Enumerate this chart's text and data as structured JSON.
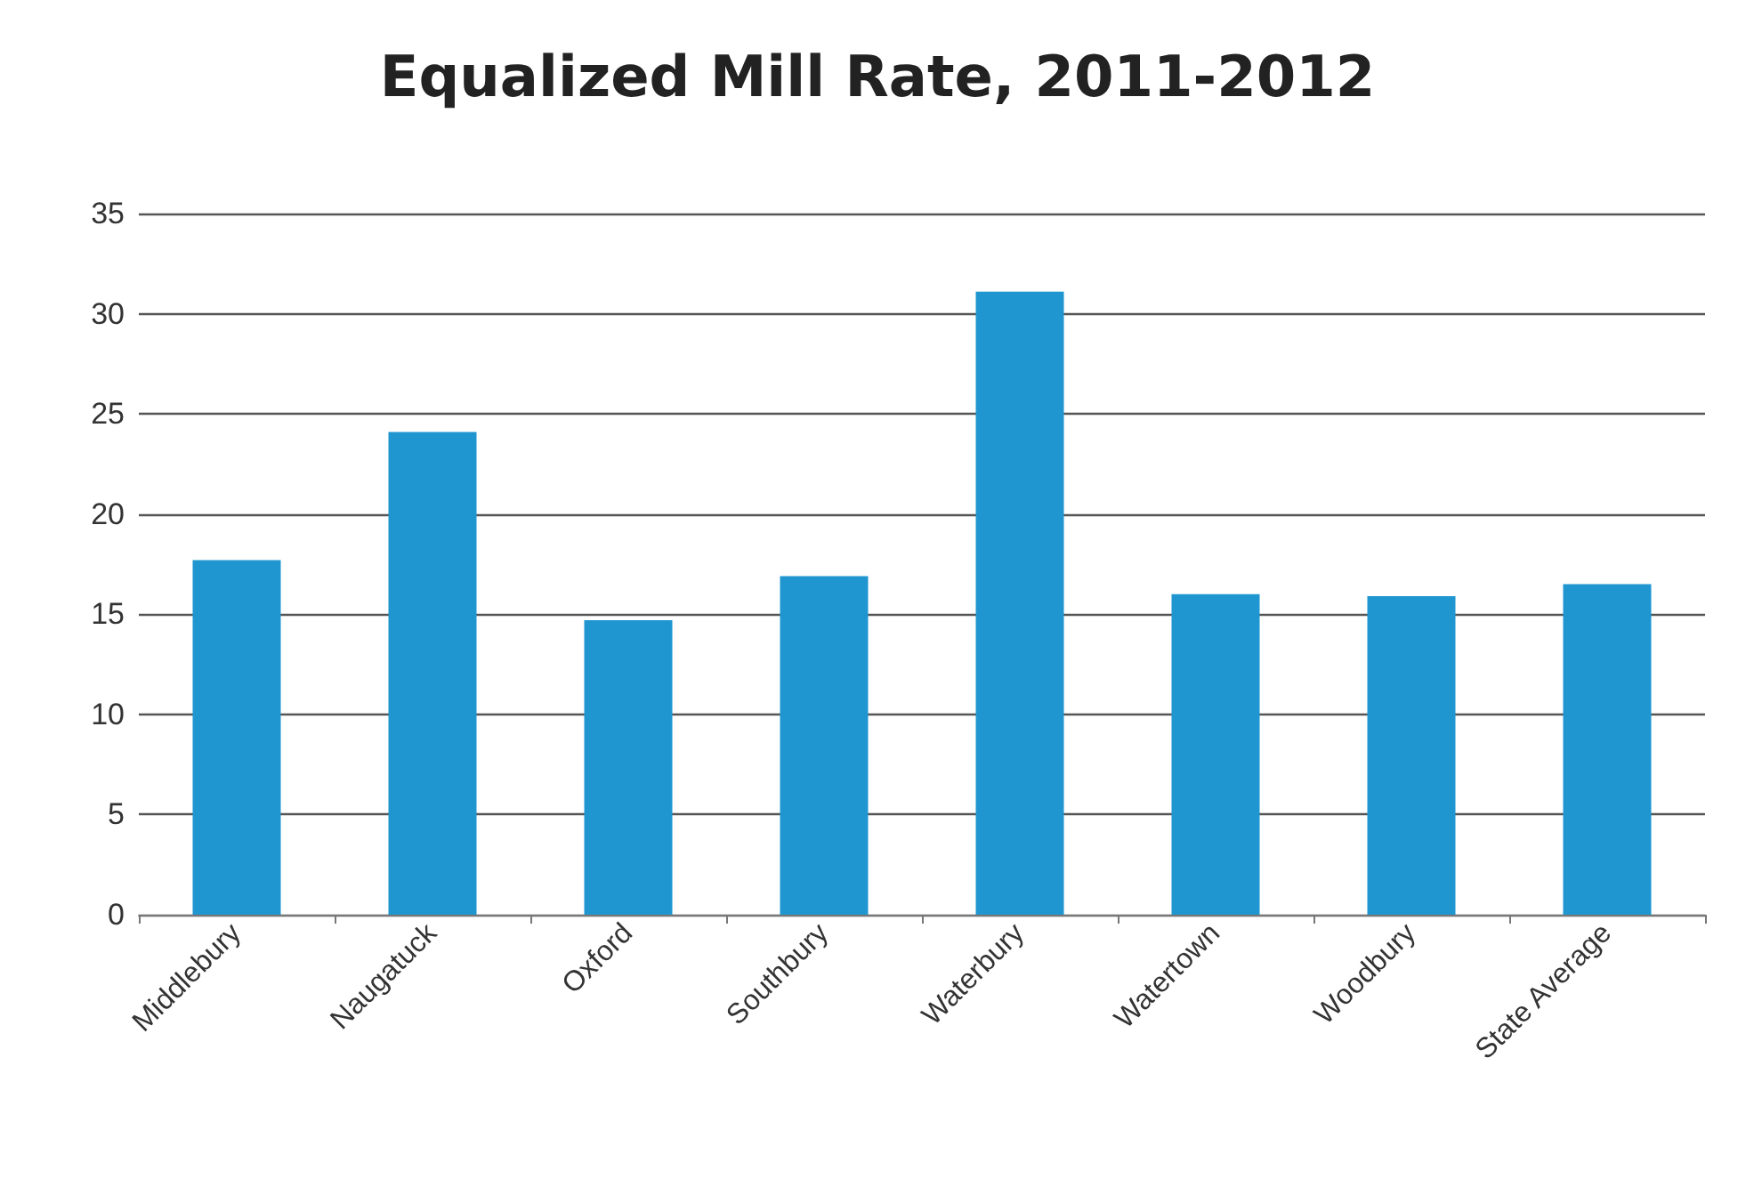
{
  "chart_data": {
    "type": "bar",
    "title": "Equalized Mill Rate, 2011-2012",
    "categories": [
      "Middlebury",
      "Naugatuck",
      "Oxford",
      "Southbury",
      "Waterbury",
      "Watertown",
      "Woodbury",
      "State Average"
    ],
    "values": [
      17.7,
      24.1,
      14.7,
      16.9,
      31.1,
      16.0,
      15.9,
      16.5
    ],
    "color": "#1f96d0",
    "ylim": [
      0,
      35
    ],
    "yticks": [
      0,
      5,
      10,
      15,
      20,
      25,
      30,
      35
    ],
    "grid": "y"
  }
}
